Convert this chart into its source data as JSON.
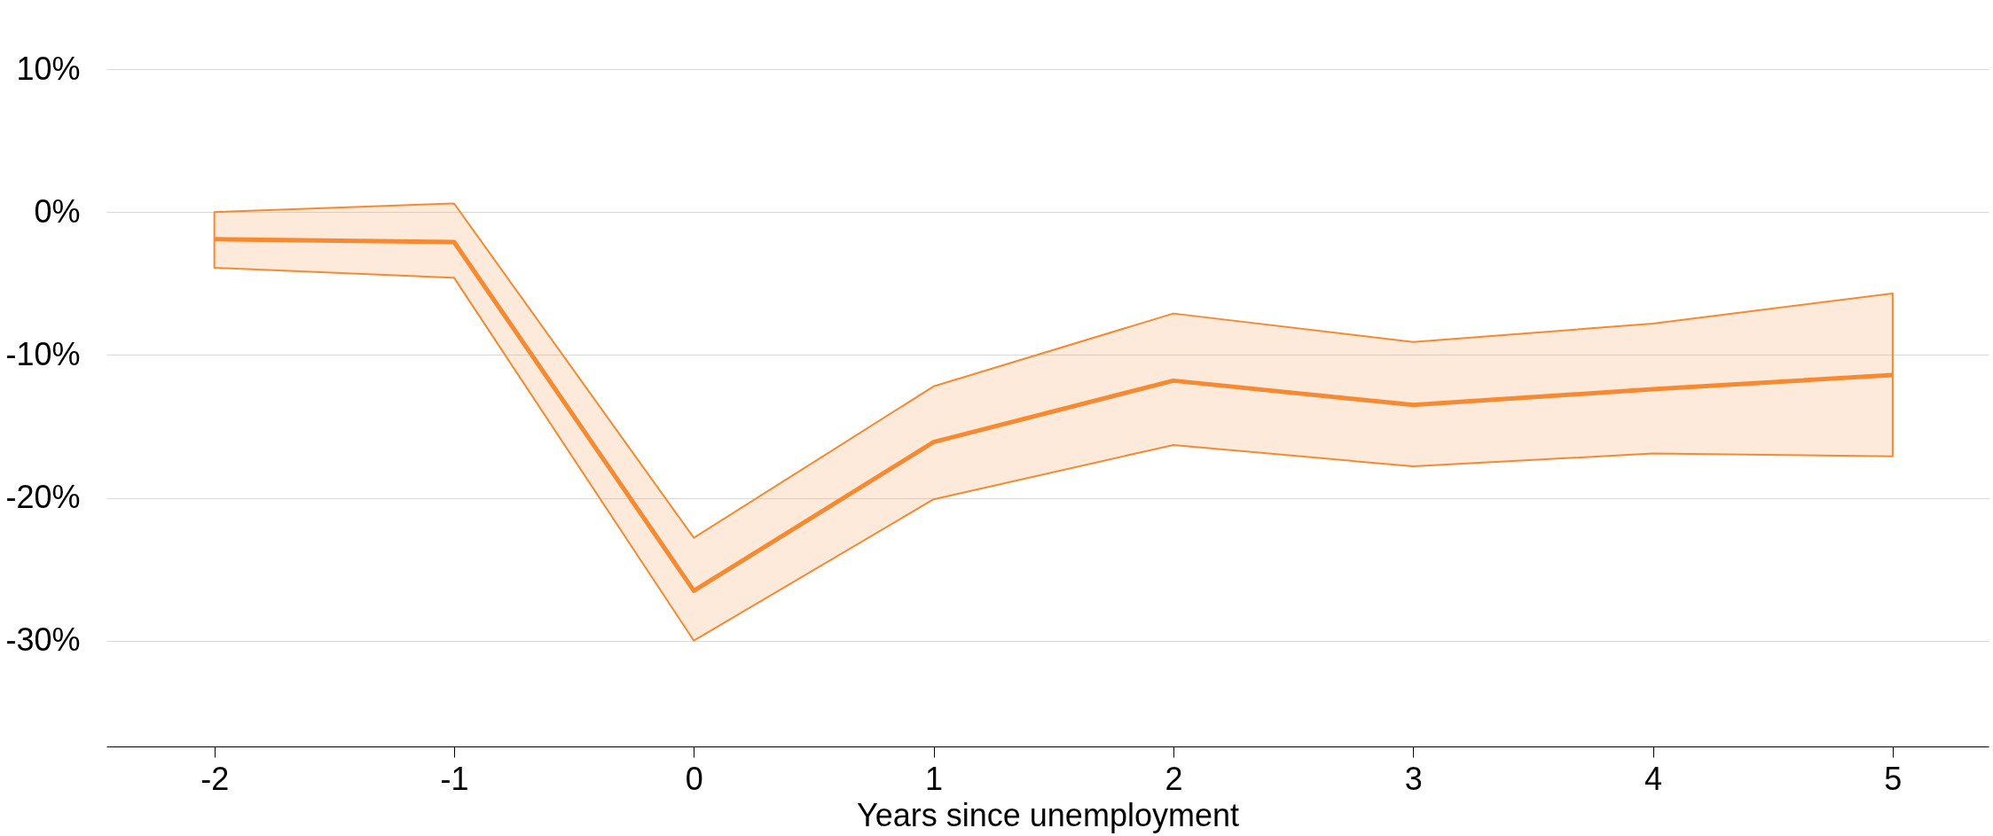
{
  "chart_data": {
    "type": "line",
    "xlabel": "Years since unemployment",
    "x": [
      -2,
      -1,
      0,
      1,
      2,
      3,
      4,
      5
    ],
    "series": [
      {
        "color": "#f58a33",
        "values": [
          -1.9,
          -2.1,
          -26.5,
          -16.1,
          -11.8,
          -13.5,
          -12.4,
          -11.4
        ],
        "lower": [
          -3.9,
          -4.6,
          -30.0,
          -20.1,
          -16.3,
          -17.8,
          -16.9,
          -17.1
        ],
        "upper": [
          0.0,
          0.6,
          -22.8,
          -12.2,
          -7.1,
          -9.1,
          -7.8,
          -5.7
        ]
      }
    ],
    "xlim": [
      -2.45,
      5.4
    ],
    "xticks": [
      -2,
      -1,
      0,
      1,
      2,
      3,
      4,
      5
    ],
    "ylim": [
      -37.4,
      10
    ],
    "yticks": [
      {
        "value": 10,
        "label": "10%"
      },
      {
        "value": 0,
        "label": "0%"
      },
      {
        "value": -10,
        "label": "-10%"
      },
      {
        "value": -20,
        "label": "-20%"
      },
      {
        "value": -30,
        "label": "-30%"
      }
    ],
    "grid": "y",
    "marker": "none",
    "line_style": "solid"
  }
}
